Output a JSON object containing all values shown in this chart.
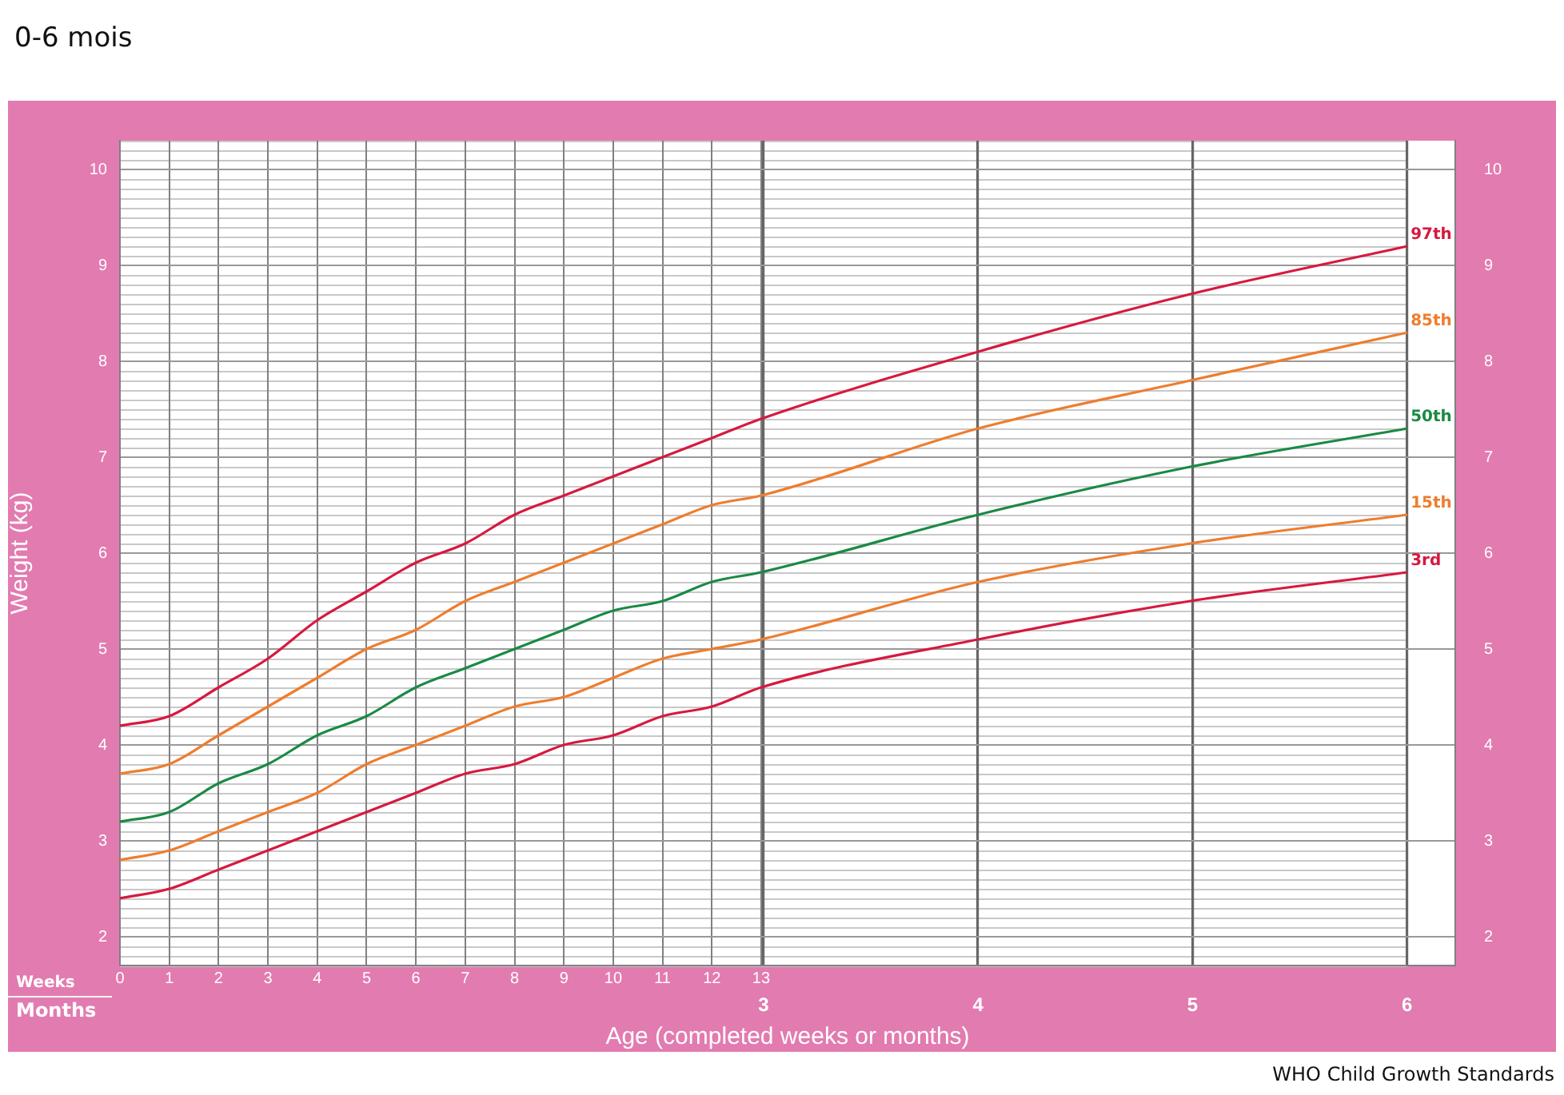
{
  "chart_data": {
    "type": "line",
    "title": "0-6 mois",
    "ylabel": "Weight (kg)",
    "xlabel": "Age (completed weeks or months)",
    "x": [
      0,
      1,
      2,
      3,
      4,
      5,
      6,
      7,
      8,
      9,
      10,
      11,
      12,
      13,
      17.4,
      21.7,
      26.1
    ],
    "series": [
      {
        "name": "97th",
        "color": "#d7193f",
        "values": [
          4.2,
          4.3,
          4.6,
          4.9,
          5.3,
          5.6,
          5.9,
          6.1,
          6.4,
          6.6,
          6.8,
          7.0,
          7.2,
          7.4,
          8.1,
          8.7,
          9.2
        ]
      },
      {
        "name": "85th",
        "color": "#ee7d2e",
        "values": [
          3.7,
          3.8,
          4.1,
          4.4,
          4.7,
          5.0,
          5.2,
          5.5,
          5.7,
          5.9,
          6.1,
          6.3,
          6.5,
          6.6,
          7.3,
          7.8,
          8.3
        ]
      },
      {
        "name": "50th",
        "color": "#1a8a44",
        "values": [
          3.2,
          3.3,
          3.6,
          3.8,
          4.1,
          4.3,
          4.6,
          4.8,
          5.0,
          5.2,
          5.4,
          5.5,
          5.7,
          5.8,
          6.4,
          6.9,
          7.3
        ]
      },
      {
        "name": "15th",
        "color": "#ee7d2e",
        "values": [
          2.8,
          2.9,
          3.1,
          3.3,
          3.5,
          3.8,
          4.0,
          4.2,
          4.4,
          4.5,
          4.7,
          4.9,
          5.0,
          5.1,
          5.7,
          6.1,
          6.4
        ]
      },
      {
        "name": "3rd",
        "color": "#d7193f",
        "values": [
          2.4,
          2.5,
          2.7,
          2.9,
          3.1,
          3.3,
          3.5,
          3.7,
          3.8,
          4.0,
          4.1,
          4.3,
          4.4,
          4.6,
          5.1,
          5.5,
          5.8
        ]
      }
    ],
    "xlim": [
      0,
      27.07
    ],
    "xticks": [
      0,
      1,
      2,
      3,
      4,
      5,
      6,
      7,
      8,
      9,
      10,
      11,
      12,
      13
    ],
    "x2lim": [
      0,
      6.225
    ],
    "x2ticks": [
      3,
      4,
      5,
      6
    ],
    "ylim": [
      1.7,
      10.3
    ],
    "yticks": [
      2,
      3,
      4,
      5,
      6,
      7,
      8,
      9,
      10
    ],
    "y2lim": [
      1.7,
      10.3
    ],
    "y2ticks": [
      2,
      3,
      4,
      5,
      6,
      7,
      8,
      9,
      10
    ],
    "grid": true,
    "legend": false,
    "marker": "none",
    "line_style": "solid",
    "annotations": [
      "Weeks",
      "Months",
      "WHO Child Growth Standards"
    ]
  }
}
